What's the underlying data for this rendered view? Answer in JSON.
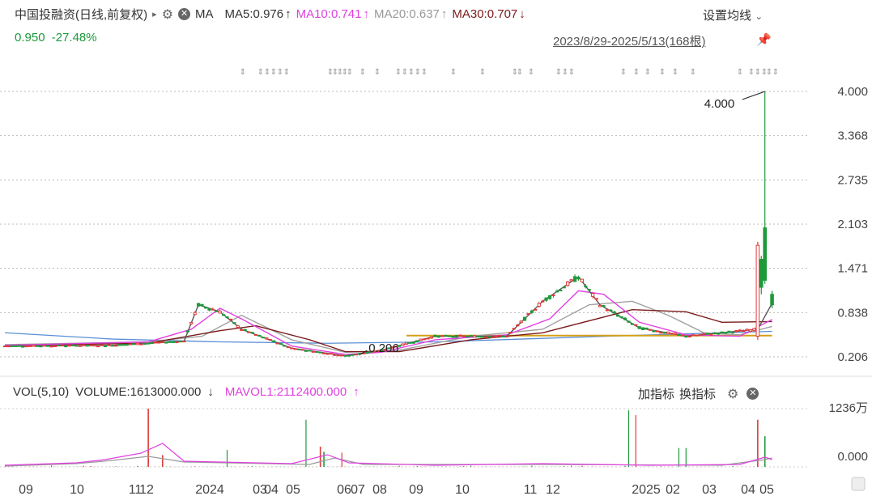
{
  "header": {
    "stock_name": "中国投融资(日线,前复权)",
    "arrow": "▸",
    "ma_label": "MA",
    "ma5": "MA5:0.976",
    "ma5_dir": "↑",
    "ma10": "MA10:0.741",
    "ma10_dir": "↑",
    "ma20": "MA20:0.637",
    "ma20_dir": "↑",
    "ma30": "MA30:0.707",
    "ma30_dir": "↓",
    "setting": "设置均线",
    "setting_caret": "⌄"
  },
  "summary": {
    "price": "0.950",
    "change": "-27.48%",
    "range": "2023/8/29-2025/5/13(168根)"
  },
  "volume_header": {
    "vol": "VOL(5,10)",
    "volume": "VOLUME:1613000.000",
    "volume_dir": "↓",
    "mavol1": "MAVOL1:2112400.000",
    "mavol1_dir": "↑",
    "add_indicator": "加指标",
    "switch_indicator": "换指标"
  },
  "colors": {
    "up": "#e03a3a",
    "down": "#1f9a3a",
    "ma5": "#555555",
    "ma10": "#e040e0",
    "ma20": "#a0a0a0",
    "ma30": "#7a1a1a",
    "cost_line": "#d4a017",
    "blue_line": "#5b8fd6"
  },
  "chart_data": {
    "type": "candlestick",
    "y_ticks": [
      "4.000",
      "3.368",
      "2.735",
      "2.103",
      "1.471",
      "0.838",
      "0.206"
    ],
    "vol_ticks": [
      "1236万",
      "0.000"
    ],
    "x_ticks": [
      "09",
      "10",
      "11",
      "12",
      "2024",
      "03",
      "04",
      "05",
      "06",
      "07",
      "08",
      "09",
      "10",
      "11",
      "12",
      "2025",
      "02",
      "03",
      "04",
      "05"
    ],
    "annotations": {
      "high": "4.000",
      "low": "0.206"
    },
    "ylim": [
      0.206,
      4.0
    ],
    "ma5": [
      [
        0,
        0.36
      ],
      [
        30,
        0.37
      ],
      [
        50,
        0.43
      ],
      [
        54,
        0.95
      ],
      [
        60,
        0.85
      ],
      [
        66,
        0.6
      ],
      [
        80,
        0.33
      ],
      [
        95,
        0.22
      ],
      [
        105,
        0.3
      ],
      [
        120,
        0.5
      ],
      [
        130,
        0.5
      ],
      [
        140,
        0.5
      ],
      [
        150,
        1.0
      ],
      [
        160,
        1.35
      ],
      [
        166,
        0.95
      ],
      [
        177,
        0.62
      ],
      [
        190,
        0.5
      ],
      [
        210,
        0.6
      ],
      [
        214,
        0.97
      ]
    ],
    "ma10": [
      [
        0,
        0.37
      ],
      [
        40,
        0.42
      ],
      [
        52,
        0.6
      ],
      [
        60,
        0.9
      ],
      [
        66,
        0.75
      ],
      [
        80,
        0.36
      ],
      [
        95,
        0.24
      ],
      [
        105,
        0.27
      ],
      [
        120,
        0.45
      ],
      [
        140,
        0.52
      ],
      [
        152,
        0.75
      ],
      [
        160,
        1.15
      ],
      [
        167,
        1.1
      ],
      [
        177,
        0.7
      ],
      [
        190,
        0.52
      ],
      [
        205,
        0.5
      ],
      [
        214,
        0.74
      ]
    ],
    "ma20": [
      [
        0,
        0.38
      ],
      [
        40,
        0.42
      ],
      [
        55,
        0.5
      ],
      [
        66,
        0.8
      ],
      [
        80,
        0.45
      ],
      [
        95,
        0.27
      ],
      [
        110,
        0.3
      ],
      [
        130,
        0.5
      ],
      [
        150,
        0.6
      ],
      [
        163,
        0.95
      ],
      [
        175,
        1.0
      ],
      [
        185,
        0.8
      ],
      [
        195,
        0.55
      ],
      [
        205,
        0.52
      ],
      [
        214,
        0.64
      ]
    ],
    "ma30": [
      [
        0,
        0.37
      ],
      [
        40,
        0.4
      ],
      [
        60,
        0.58
      ],
      [
        70,
        0.65
      ],
      [
        85,
        0.45
      ],
      [
        95,
        0.28
      ],
      [
        110,
        0.28
      ],
      [
        130,
        0.45
      ],
      [
        150,
        0.55
      ],
      [
        175,
        0.88
      ],
      [
        190,
        0.85
      ],
      [
        200,
        0.7
      ],
      [
        214,
        0.71
      ]
    ],
    "volume_max": 12360000
  }
}
